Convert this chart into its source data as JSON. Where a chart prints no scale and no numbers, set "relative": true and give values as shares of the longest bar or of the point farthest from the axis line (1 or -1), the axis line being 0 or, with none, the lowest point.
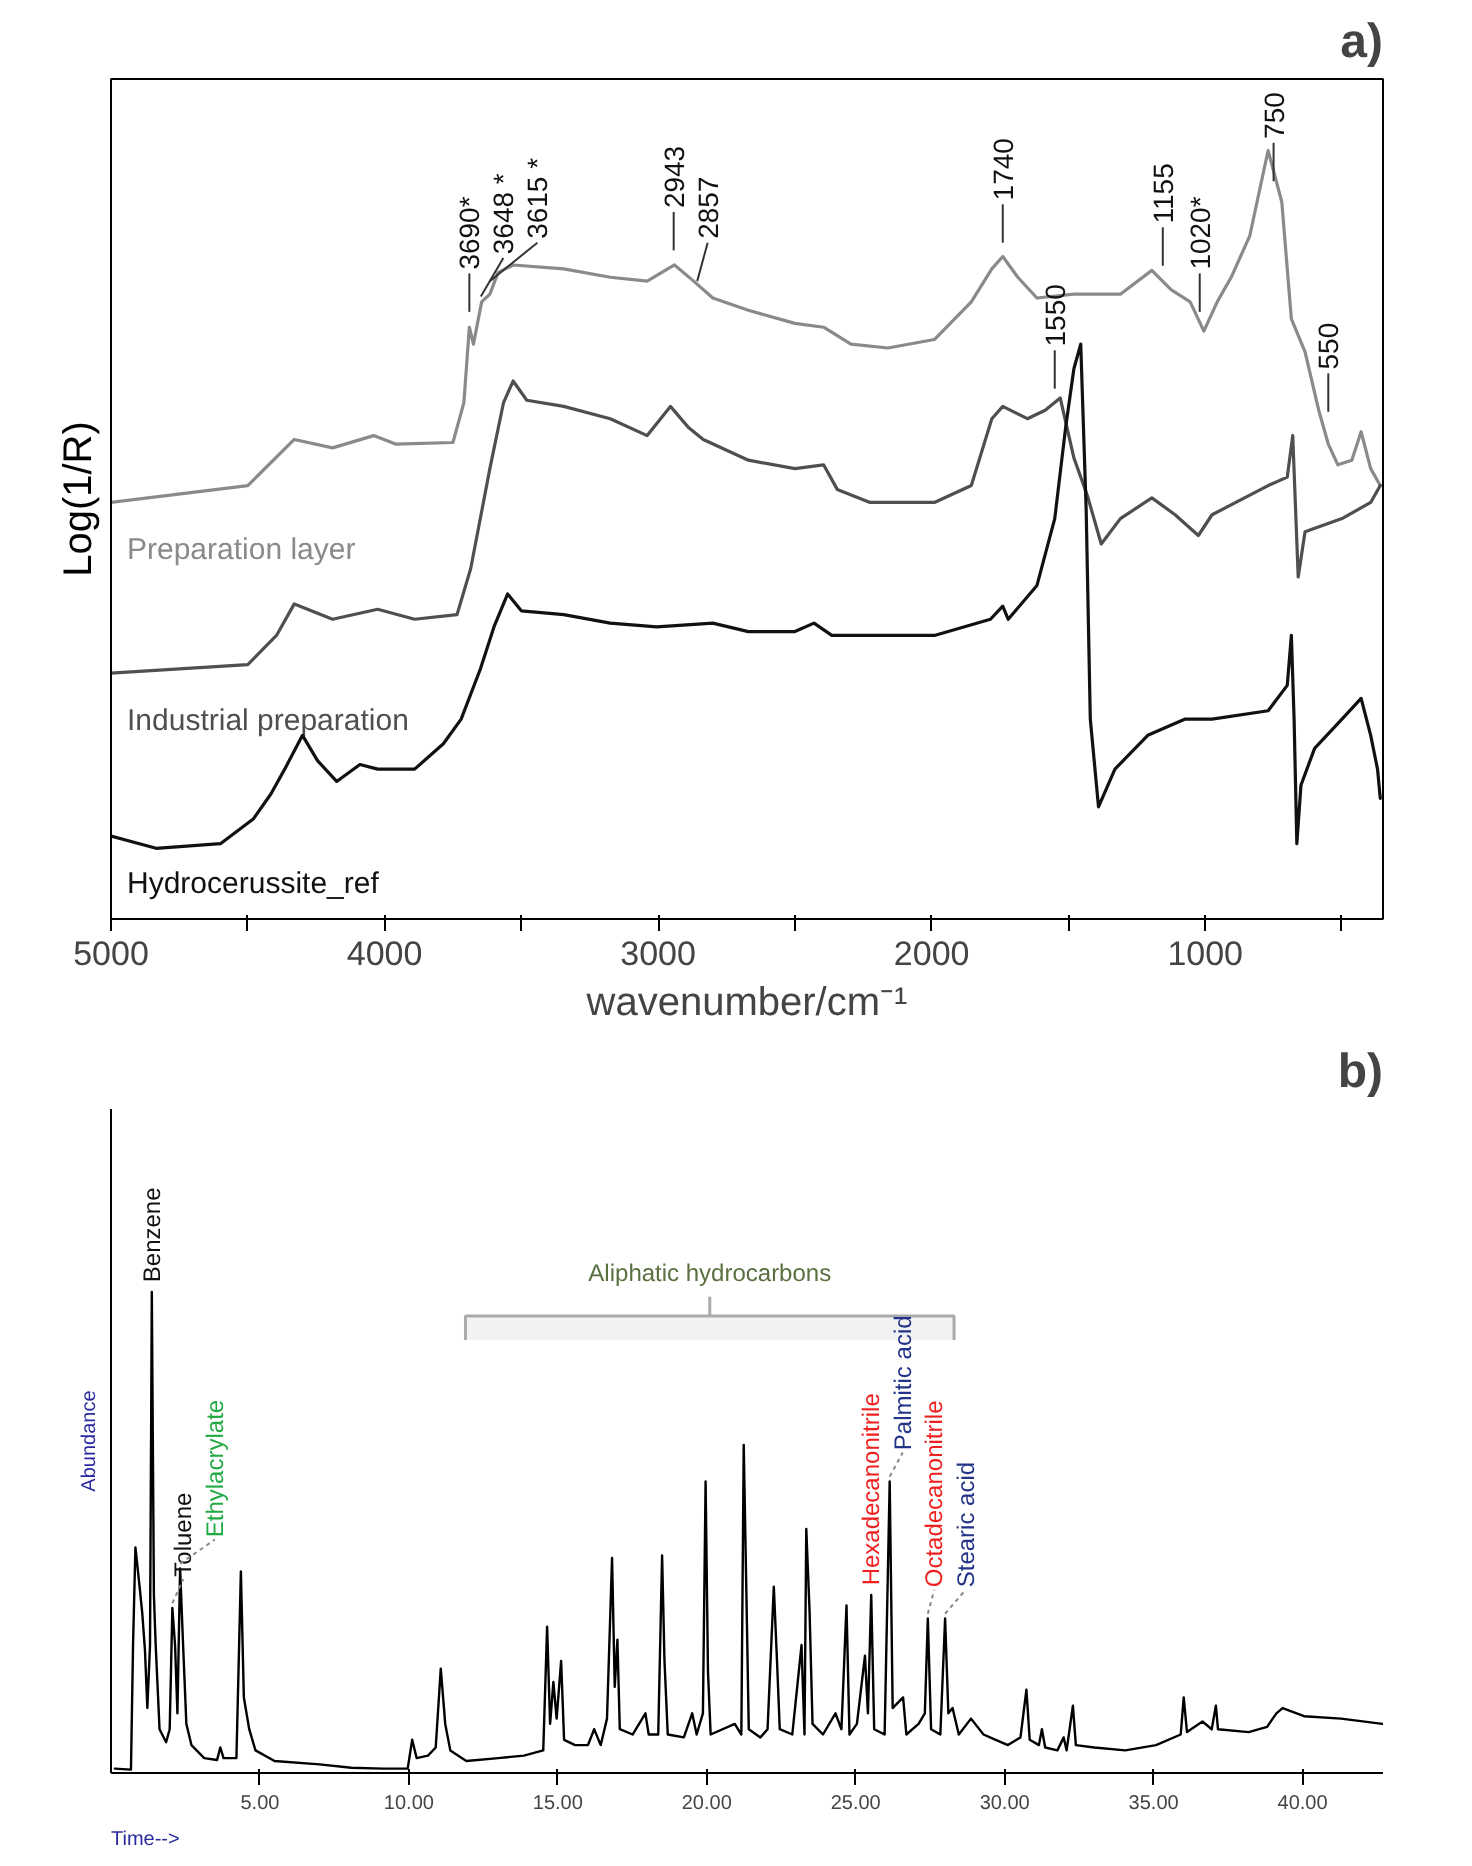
{
  "chart_data": [
    {
      "type": "line",
      "xlabel": "wavenumber/cm⁻¹",
      "ylabel": "Log(1/R)",
      "relative": true,
      "tick_labels": "x",
      "grid": false,
      "legend": false,
      "marker": "none",
      "line_style": "solid",
      "xlim": [
        5000,
        350
      ],
      "xticks": [
        5000,
        {
          "value": 4500,
          "label": null
        },
        4000,
        {
          "value": 3500,
          "label": null
        },
        3000,
        {
          "value": 2500,
          "label": null
        },
        2000,
        {
          "value": 1500,
          "label": null
        },
        1000,
        {
          "value": 500,
          "label": null
        }
      ],
      "series": [
        {
          "name": "Preparation layer",
          "color": "#8a8a8a",
          "x": [
            5000,
            4500,
            4330,
            4190,
            4040,
            3960,
            3750,
            3710,
            3690,
            3675,
            3645,
            3615,
            3585,
            3530,
            3345,
            3175,
            3040,
            2940,
            2870,
            2800,
            2670,
            2500,
            2395,
            2295,
            2160,
            1990,
            1855,
            1780,
            1740,
            1685,
            1615,
            1480,
            1310,
            1195,
            1125,
            1055,
            1005,
            956,
            905,
            837,
            770,
            720,
            685,
            635,
            585,
            550,
            515,
            464,
            430,
            395,
            360
          ],
          "values": [
            0.542,
            0.564,
            0.624,
            0.613,
            0.629,
            0.618,
            0.62,
            0.672,
            0.77,
            0.748,
            0.803,
            0.813,
            0.841,
            0.851,
            0.846,
            0.835,
            0.83,
            0.851,
            0.83,
            0.808,
            0.792,
            0.775,
            0.77,
            0.748,
            0.743,
            0.754,
            0.803,
            0.846,
            0.862,
            0.835,
            0.808,
            0.813,
            0.813,
            0.844,
            0.819,
            0.803,
            0.765,
            0.803,
            0.835,
            0.889,
            1.0,
            0.933,
            0.781,
            0.738,
            0.662,
            0.618,
            0.591,
            0.597,
            0.634,
            0.586,
            0.564
          ]
        },
        {
          "name": "Industrial preparation",
          "color": "#4f4f4f",
          "x": [
            5000,
            4500,
            4395,
            4330,
            4190,
            4025,
            3890,
            3735,
            3685,
            3615,
            3565,
            3530,
            3480,
            3345,
            3175,
            3040,
            2955,
            2890,
            2835,
            2670,
            2500,
            2395,
            2345,
            2225,
            1990,
            1855,
            1780,
            1740,
            1650,
            1585,
            1530,
            1480,
            1430,
            1380,
            1310,
            1195,
            1110,
            1025,
            975,
            770,
            700,
            680,
            660,
            635,
            500,
            395,
            360
          ],
          "values": [
            0.32,
            0.331,
            0.369,
            0.41,
            0.39,
            0.403,
            0.39,
            0.396,
            0.456,
            0.586,
            0.672,
            0.7,
            0.675,
            0.667,
            0.651,
            0.629,
            0.667,
            0.64,
            0.624,
            0.597,
            0.586,
            0.591,
            0.559,
            0.542,
            0.542,
            0.564,
            0.651,
            0.667,
            0.651,
            0.662,
            0.678,
            0.6,
            0.55,
            0.488,
            0.521,
            0.548,
            0.526,
            0.499,
            0.526,
            0.564,
            0.575,
            0.629,
            0.445,
            0.504,
            0.521,
            0.542,
            0.564
          ]
        },
        {
          "name": "Hydrocerussite_ref",
          "color": "#111111",
          "x": [
            5000,
            4835,
            4600,
            4480,
            4415,
            4365,
            4300,
            4245,
            4175,
            4090,
            4025,
            3890,
            3785,
            3720,
            3650,
            3600,
            3550,
            3500,
            3345,
            3175,
            3005,
            2800,
            2670,
            2500,
            2430,
            2365,
            1990,
            1785,
            1740,
            1720,
            1615,
            1550,
            1510,
            1480,
            1455,
            1435,
            1420,
            1390,
            1330,
            1210,
            1075,
            975,
            770,
            700,
            685,
            675,
            665,
            650,
            600,
            500,
            430,
            395,
            370,
            360
          ],
          "values": [
            0.108,
            0.092,
            0.098,
            0.13,
            0.163,
            0.195,
            0.239,
            0.206,
            0.179,
            0.201,
            0.195,
            0.195,
            0.228,
            0.26,
            0.325,
            0.38,
            0.423,
            0.401,
            0.396,
            0.385,
            0.38,
            0.385,
            0.374,
            0.374,
            0.385,
            0.369,
            0.369,
            0.39,
            0.407,
            0.39,
            0.434,
            0.521,
            0.64,
            0.716,
            0.748,
            0.531,
            0.26,
            0.146,
            0.195,
            0.239,
            0.26,
            0.26,
            0.271,
            0.304,
            0.369,
            0.26,
            0.098,
            0.174,
            0.222,
            0.26,
            0.287,
            0.239,
            0.195,
            0.157
          ]
        }
      ],
      "annotations": [
        {
          "text": "3690*",
          "x": 3690,
          "y": 0.78
        },
        {
          "text": "3648 *",
          "x": 3648,
          "y": 0.8
        },
        {
          "text": "3615 *",
          "x": 3615,
          "y": 0.82
        },
        {
          "text": "2943",
          "x": 2943,
          "y": 0.86
        },
        {
          "text": "2857",
          "x": 2857,
          "y": 0.82
        },
        {
          "text": "1740",
          "x": 1740,
          "y": 0.87
        },
        {
          "text": "1550",
          "x": 1550,
          "y": 0.68
        },
        {
          "text": "1155",
          "x": 1155,
          "y": 0.84
        },
        {
          "text": "1020*",
          "x": 1020,
          "y": 0.78
        },
        {
          "text": "750",
          "x": 750,
          "y": 0.95
        },
        {
          "text": "550",
          "x": 550,
          "y": 0.65
        },
        "a)"
      ]
    },
    {
      "type": "line",
      "xlabel": "Time-->",
      "ylabel": "Abundance",
      "relative": true,
      "tick_labels": "x",
      "grid": false,
      "legend": false,
      "marker": "none",
      "line_style": "solid",
      "xlim": [
        0,
        42.7
      ],
      "xticks": [
        {
          "value": 5,
          "label": "5.00"
        },
        {
          "value": 10,
          "label": "10.00"
        },
        {
          "value": 15,
          "label": "15.00"
        },
        {
          "value": 20,
          "label": "20.00"
        },
        {
          "value": 25,
          "label": "25.00"
        },
        {
          "value": 30,
          "label": "30.00"
        },
        {
          "value": 35,
          "label": "35.00"
        },
        {
          "value": 40,
          "label": "40.00"
        }
      ],
      "series": [
        {
          "color": "#000000",
          "x": [
            0.13,
            0.67,
            0.74,
            0.82,
            0.97,
            1.05,
            1.14,
            1.22,
            1.31,
            1.37,
            1.44,
            1.5,
            1.63,
            1.85,
            1.97,
            2.06,
            2.15,
            2.23,
            2.32,
            2.42,
            2.53,
            2.7,
            3.13,
            3.56,
            3.67,
            3.78,
            4.21,
            4.36,
            4.46,
            4.64,
            4.85,
            5.49,
            7.0,
            8.07,
            9.14,
            9.96,
            10.11,
            10.26,
            10.64,
            10.9,
            11.07,
            11.22,
            11.39,
            11.93,
            13.0,
            13.86,
            14.51,
            14.64,
            14.74,
            14.85,
            14.96,
            15.11,
            15.21,
            15.58,
            16.01,
            16.22,
            16.44,
            16.65,
            16.82,
            16.91,
            17.0,
            17.08,
            17.51,
            17.94,
            18.05,
            18.37,
            18.5,
            18.58,
            18.69,
            19.23,
            19.51,
            19.66,
            19.87,
            19.96,
            20.04,
            20.13,
            20.94,
            21.16,
            21.24,
            21.31,
            21.41,
            21.8,
            22.04,
            22.25,
            22.35,
            22.45,
            22.87,
            23.18,
            23.28,
            23.34,
            23.45,
            23.55,
            23.9,
            24.32,
            24.52,
            24.69,
            24.79,
            25.04,
            25.31,
            25.41,
            25.52,
            25.62,
            25.97,
            26.14,
            26.24,
            26.59,
            26.7,
            27.11,
            27.32,
            27.42,
            27.53,
            27.84,
            28.0,
            28.11,
            28.25,
            28.46,
            28.87,
            29.29,
            29.7,
            30.11,
            30.53,
            30.73,
            30.84,
            31.15,
            31.25,
            31.36,
            31.77,
            31.98,
            32.08,
            32.29,
            32.39,
            33.01,
            34.05,
            35.08,
            35.91,
            36.01,
            36.12,
            36.64,
            36.95,
            37.09,
            37.16,
            38.19,
            38.81,
            39.12,
            39.33,
            40.05,
            41.29,
            42.68
          ],
          "values": [
            0.009,
            0.007,
            0.266,
            0.469,
            0.381,
            0.332,
            0.255,
            0.135,
            0.266,
            1.0,
            0.37,
            0.266,
            0.091,
            0.064,
            0.091,
            0.343,
            0.266,
            0.124,
            0.425,
            0.266,
            0.102,
            0.058,
            0.031,
            0.027,
            0.053,
            0.031,
            0.031,
            0.419,
            0.157,
            0.091,
            0.047,
            0.025,
            0.018,
            0.011,
            0.009,
            0.009,
            0.069,
            0.031,
            0.036,
            0.053,
            0.217,
            0.102,
            0.047,
            0.025,
            0.031,
            0.036,
            0.047,
            0.304,
            0.102,
            0.189,
            0.113,
            0.233,
            0.069,
            0.058,
            0.058,
            0.091,
            0.058,
            0.113,
            0.447,
            0.179,
            0.277,
            0.091,
            0.08,
            0.124,
            0.08,
            0.08,
            0.452,
            0.233,
            0.08,
            0.074,
            0.124,
            0.08,
            0.124,
            0.606,
            0.211,
            0.08,
            0.102,
            0.08,
            0.682,
            0.441,
            0.091,
            0.074,
            0.091,
            0.387,
            0.244,
            0.091,
            0.08,
            0.266,
            0.08,
            0.507,
            0.337,
            0.102,
            0.08,
            0.124,
            0.091,
            0.348,
            0.08,
            0.102,
            0.244,
            0.124,
            0.37,
            0.091,
            0.08,
            0.606,
            0.135,
            0.157,
            0.08,
            0.102,
            0.124,
            0.321,
            0.091,
            0.08,
            0.321,
            0.124,
            0.135,
            0.08,
            0.113,
            0.08,
            0.069,
            0.058,
            0.074,
            0.173,
            0.069,
            0.058,
            0.091,
            0.053,
            0.047,
            0.074,
            0.047,
            0.14,
            0.058,
            0.053,
            0.047,
            0.058,
            0.08,
            0.157,
            0.085,
            0.107,
            0.091,
            0.14,
            0.091,
            0.085,
            0.096,
            0.124,
            0.135,
            0.118,
            0.113,
            0.102
          ]
        }
      ],
      "bands": [
        {
          "axis": "x",
          "from": 11.9,
          "to": 28.3,
          "label": "Aliphatic hydrocarbons"
        }
      ],
      "annotations": [
        {
          "text": "Benzene",
          "x": 1.37,
          "y": 1.0
        },
        {
          "text": "Toluene",
          "x": 2.06,
          "y": 0.343
        },
        {
          "text": "Ethylacrylate",
          "x": 2.32,
          "y": 0.425
        },
        {
          "text": "Hexadecanonitrile",
          "x": 25.52,
          "y": 0.37
        },
        {
          "text": "Palmitic  acid",
          "x": 26.14,
          "y": 0.606
        },
        {
          "text": "Octadecanonitrile",
          "x": 27.42,
          "y": 0.321
        },
        {
          "text": "Stearic acid",
          "x": 28.0,
          "y": 0.321
        },
        "b)"
      ]
    }
  ]
}
